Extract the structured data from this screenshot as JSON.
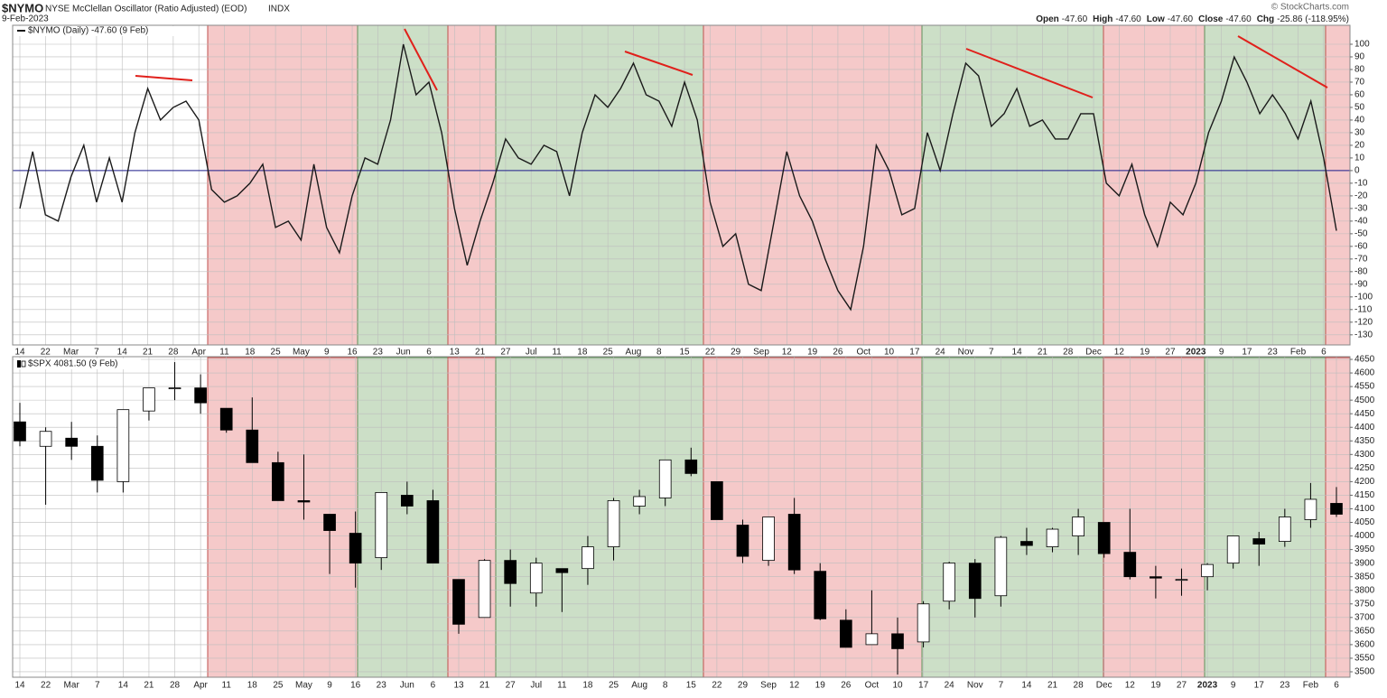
{
  "header": {
    "symbol": "$NYMO",
    "title": "NYSE McClellan Oscillator (Ratio Adjusted) (EOD)",
    "exchange": "INDX",
    "date": "9-Feb-2023",
    "copyright": "© StockCharts.com",
    "quote": [
      {
        "label": "Open",
        "value": "-47.60"
      },
      {
        "label": "High",
        "value": "-47.60"
      },
      {
        "label": "Low",
        "value": "-47.60"
      },
      {
        "label": "Close",
        "value": "-47.60"
      },
      {
        "label": "Chg",
        "value": "-25.86 (-118.95%)"
      }
    ]
  },
  "chart_data": [
    {
      "type": "line",
      "categories": [
        "14",
        null,
        "22",
        null,
        "Mar",
        null,
        "7",
        null,
        "14",
        null,
        "21",
        null,
        "28",
        null,
        "Apr",
        null,
        "11",
        null,
        "18",
        null,
        "25",
        null,
        "May",
        null,
        "9",
        null,
        "16",
        null,
        "23",
        null,
        "Jun",
        null,
        "6",
        null,
        "13",
        null,
        "21",
        null,
        "27",
        null,
        "Jul",
        null,
        "11",
        null,
        "18",
        null,
        "25",
        null,
        "Aug",
        null,
        "8",
        null,
        "15",
        null,
        "22",
        null,
        "29",
        null,
        "Sep",
        null,
        "12",
        null,
        "19",
        null,
        "26",
        null,
        "Oct",
        null,
        "10",
        null,
        "17",
        null,
        "24",
        null,
        "Nov",
        null,
        "7",
        null,
        "14",
        null,
        "21",
        null,
        "28",
        null,
        "Dec",
        null,
        "12",
        null,
        "19",
        null,
        "27",
        null,
        "2023",
        null,
        "9",
        null,
        "17",
        null,
        "23",
        null,
        "Feb",
        null,
        "6",
        null
      ],
      "series": [
        {
          "name": "$NYMO (Daily) -47.60 (9 Feb)",
          "color": "#1a1a1a",
          "values": [
            -30,
            15,
            -35,
            -40,
            -5,
            20,
            -25,
            10,
            -25,
            30,
            65,
            40,
            50,
            55,
            40,
            -15,
            -25,
            -20,
            -10,
            5,
            -45,
            -40,
            -55,
            5,
            -45,
            -65,
            -20,
            10,
            5,
            40,
            100,
            60,
            70,
            30,
            -30,
            -75,
            -40,
            -10,
            25,
            10,
            5,
            20,
            15,
            -20,
            30,
            60,
            50,
            65,
            85,
            60,
            55,
            35,
            70,
            40,
            -25,
            -60,
            -50,
            -90,
            -95,
            -40,
            15,
            -20,
            -40,
            -70,
            -95,
            -110,
            -60,
            20,
            0,
            -35,
            -30,
            30,
            0,
            45,
            85,
            75,
            35,
            45,
            65,
            35,
            40,
            25,
            25,
            45,
            45,
            -10,
            -20,
            5,
            -35,
            -60,
            -25,
            -35,
            -10,
            30,
            55,
            90,
            70,
            45,
            60,
            45,
            25,
            55,
            10,
            -47.6
          ]
        }
      ],
      "ylim": [
        -138,
        115
      ],
      "yticks": [
        -130,
        -120,
        -110,
        -100,
        -90,
        -80,
        -70,
        -60,
        -50,
        -40,
        -30,
        -20,
        -10,
        0,
        10,
        20,
        30,
        40,
        50,
        60,
        70,
        80,
        90,
        100
      ],
      "reference_line": 0,
      "reference_color": "#1c1c8c",
      "grid": true
    },
    {
      "type": "candlestick",
      "categories": [
        "14",
        "22",
        "Mar",
        "7",
        "14",
        "21",
        "28",
        "Apr",
        "11",
        "18",
        "25",
        "May",
        "9",
        "16",
        "23",
        "Jun",
        "6",
        "13",
        "21",
        "27",
        "Jul",
        "11",
        "18",
        "25",
        "Aug",
        "8",
        "15",
        "22",
        "29",
        "Sep",
        "12",
        "19",
        "26",
        "Oct",
        "10",
        "17",
        "24",
        "Nov",
        "7",
        "14",
        "21",
        "28",
        "Dec",
        "12",
        "19",
        "27",
        "2023",
        "9",
        "17",
        "23",
        "Feb",
        "6"
      ],
      "series": [
        {
          "name": "$SPX 4081.50 (9 Feb)",
          "up_color": "#ffffff",
          "down_color": "#000000",
          "open": [
            4420,
            4330,
            4360,
            4330,
            4200,
            4460,
            4545,
            4545,
            4470,
            4390,
            4270,
            4130,
            4080,
            4010,
            3920,
            4150,
            4130,
            3840,
            3700,
            3910,
            3790,
            3880,
            3880,
            3960,
            4110,
            4140,
            4280,
            4200,
            4040,
            3910,
            4080,
            3870,
            3690,
            3600,
            3640,
            3610,
            3760,
            3900,
            3780,
            3980,
            3960,
            4000,
            4050,
            3940,
            3850,
            3840,
            3850,
            3900,
            3990,
            3980,
            4060,
            4120
          ],
          "high": [
            4490,
            4400,
            4420,
            4370,
            4465,
            4545,
            4640,
            4595,
            4470,
            4510,
            4310,
            4300,
            4080,
            4090,
            4160,
            4200,
            4170,
            3840,
            3915,
            3950,
            3920,
            3880,
            4000,
            4140,
            4170,
            4280,
            4325,
            4200,
            4060,
            4070,
            4140,
            3900,
            3730,
            3800,
            3700,
            3760,
            3905,
            3915,
            4000,
            4030,
            4030,
            4100,
            4050,
            4100,
            3890,
            3880,
            3900,
            4000,
            4015,
            4100,
            4195,
            4180
          ],
          "low": [
            4330,
            4115,
            4280,
            4160,
            4160,
            4425,
            4500,
            4450,
            4380,
            4270,
            4130,
            4060,
            3860,
            3810,
            3875,
            4080,
            3900,
            3640,
            3700,
            3740,
            3740,
            3720,
            3820,
            3910,
            4080,
            4110,
            4220,
            4060,
            3900,
            3890,
            3860,
            3690,
            3590,
            3610,
            3490,
            3590,
            3730,
            3700,
            3740,
            3930,
            3940,
            3930,
            3920,
            3840,
            3770,
            3780,
            3800,
            3880,
            3890,
            3960,
            4030,
            4070
          ],
          "close": [
            4350,
            4385,
            4330,
            4205,
            4465,
            4545,
            4545,
            4490,
            4390,
            4270,
            4130,
            4125,
            4020,
            3900,
            4160,
            4110,
            3900,
            3675,
            3910,
            3825,
            3900,
            3865,
            3960,
            4130,
            4145,
            4280,
            4230,
            4060,
            3925,
            4070,
            3875,
            3695,
            3590,
            3640,
            3585,
            3750,
            3900,
            3770,
            3995,
            3965,
            4025,
            4070,
            3935,
            3850,
            3845,
            3840,
            3895,
            4000,
            3970,
            4070,
            4135,
            4080
          ]
        }
      ],
      "ylim": [
        3480,
        4660
      ],
      "yticks": [
        3500,
        3550,
        3600,
        3650,
        3700,
        3750,
        3800,
        3850,
        3900,
        3950,
        4000,
        4050,
        4100,
        4150,
        4200,
        4250,
        4300,
        4350,
        4400,
        4450,
        4500,
        4550,
        4600,
        4650
      ],
      "grid": true
    }
  ]
}
